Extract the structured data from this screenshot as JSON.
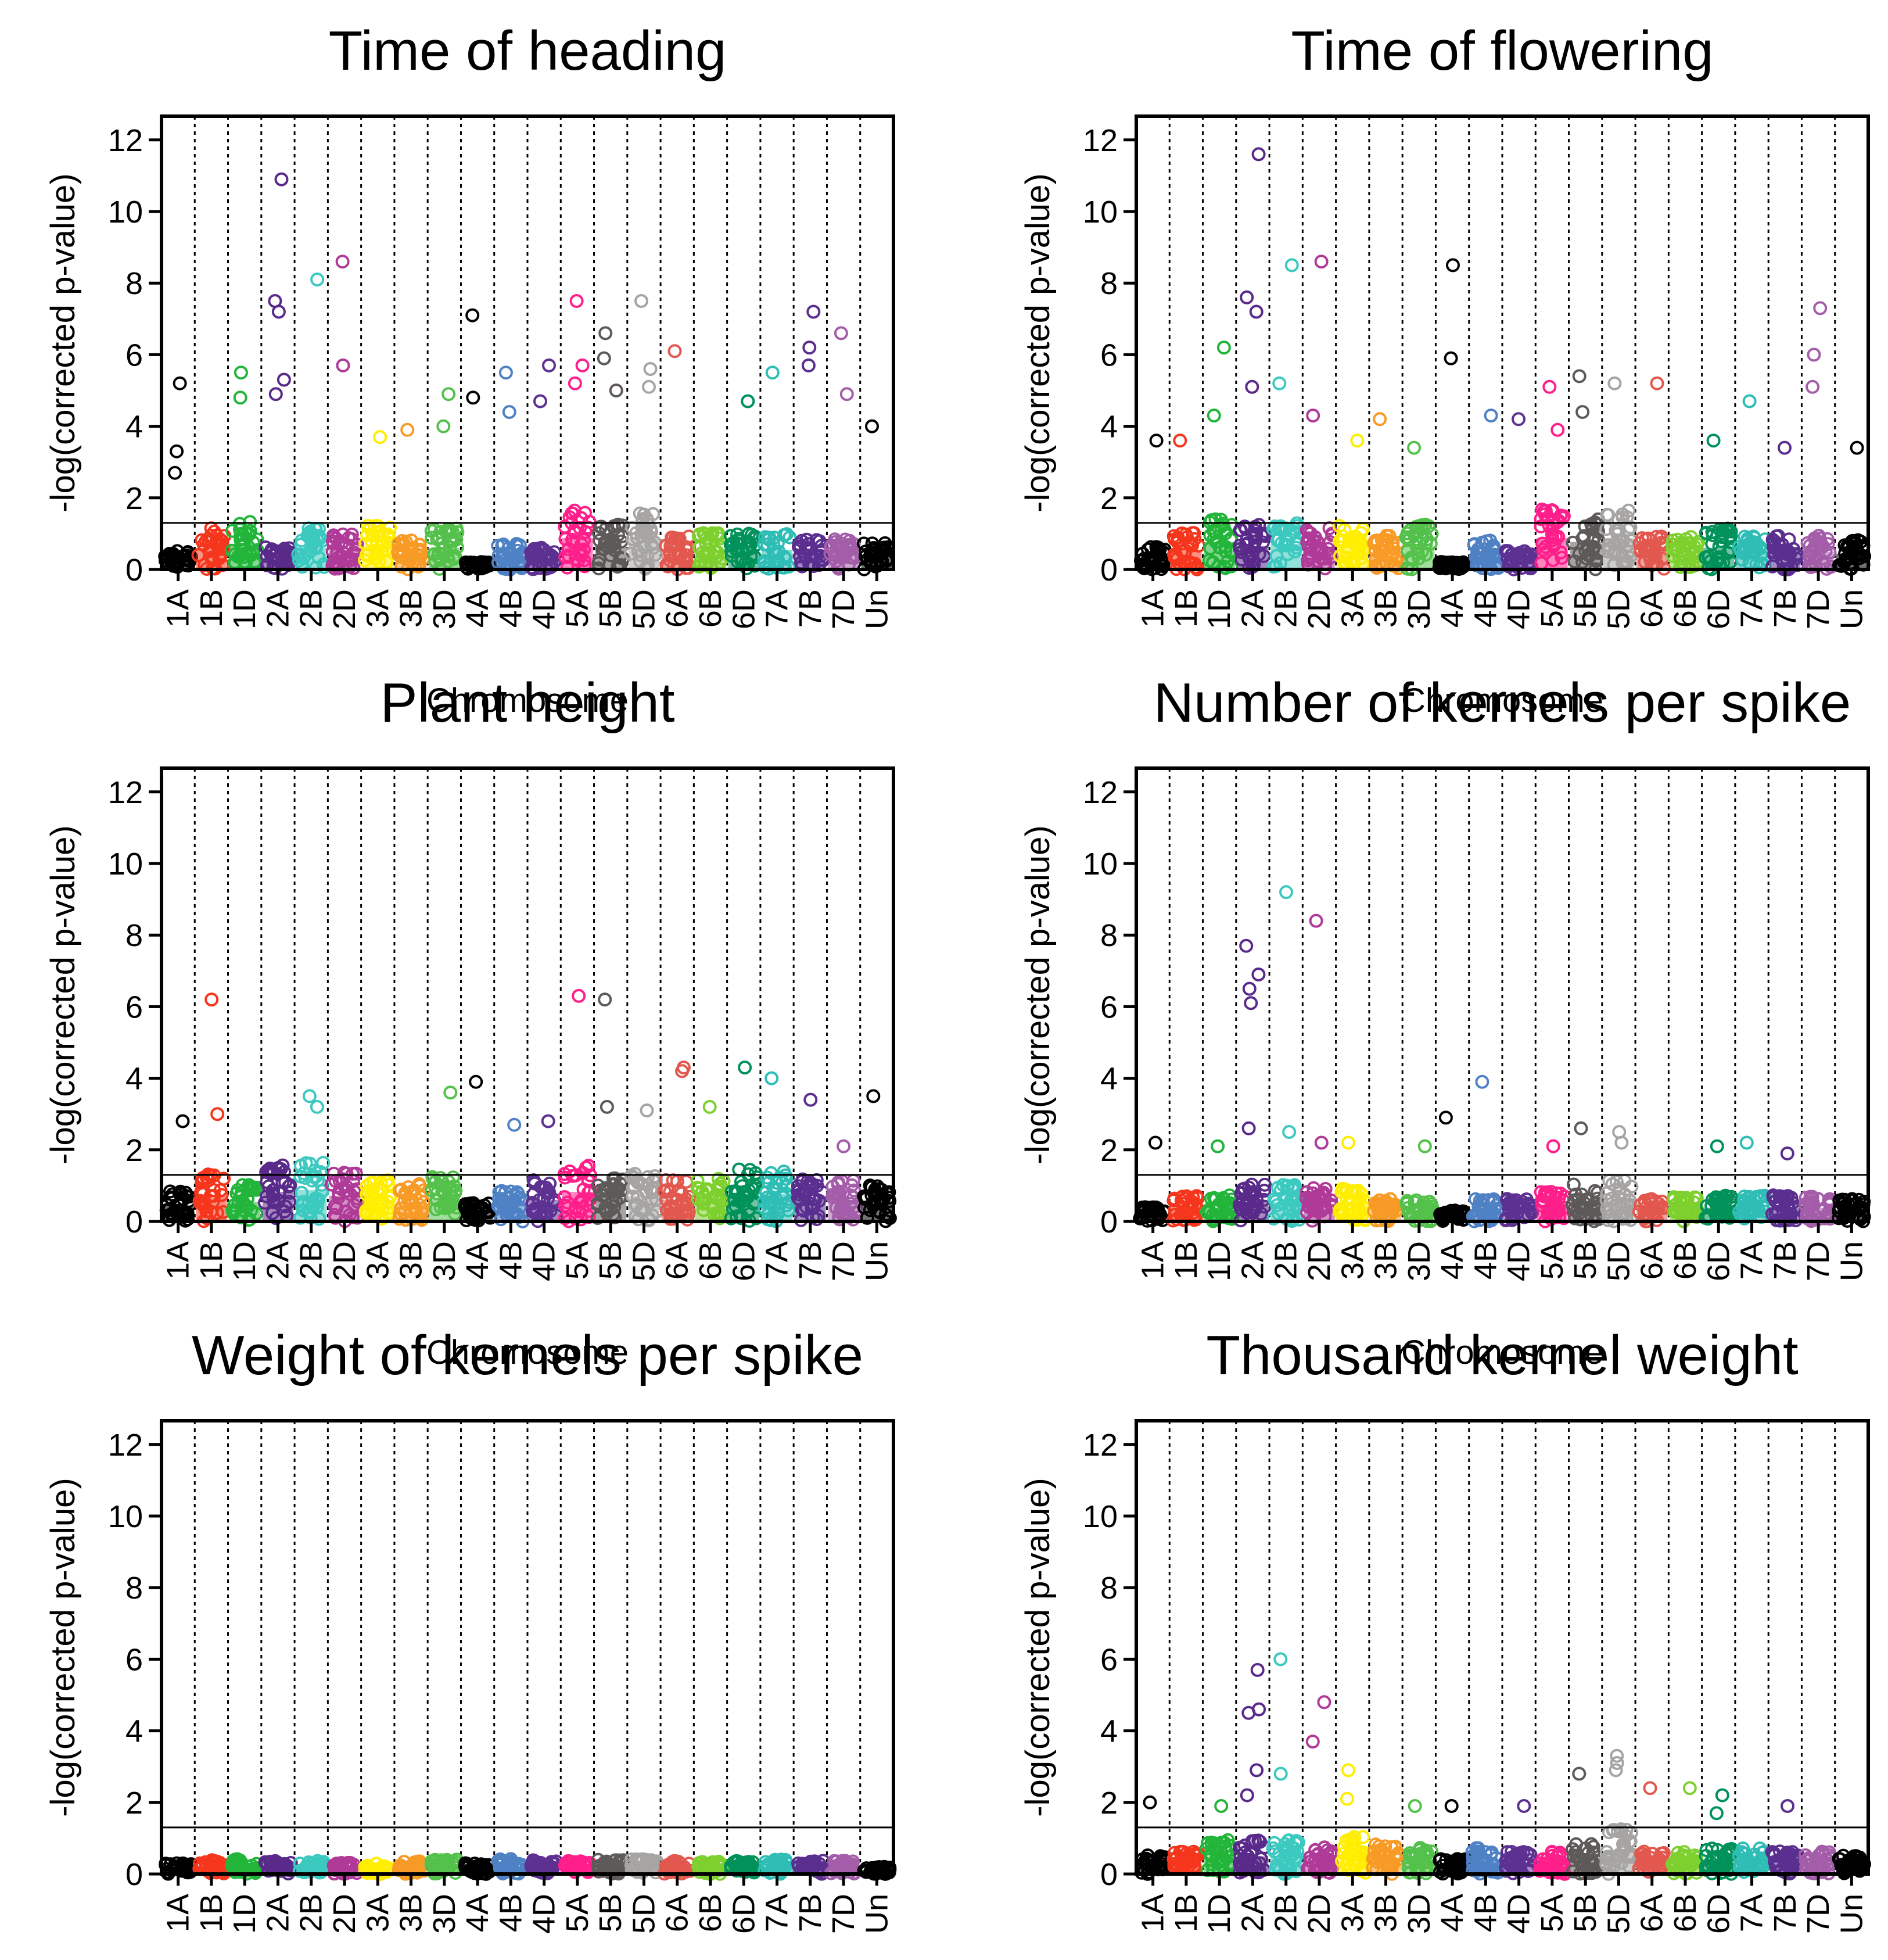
{
  "chart_data": [
    {
      "type": "scatter",
      "title": "Time of heading",
      "xlabel": "Chromosome",
      "ylabel": "-log(corrected p-value)",
      "ylim": [
        0,
        12.5
      ],
      "yticks": [
        "0",
        "2",
        "4",
        "6",
        "8",
        "10",
        "12"
      ],
      "threshold": 1.3,
      "grid": false,
      "base_levels": [
        0.5,
        1.1,
        1.3,
        0.6,
        1.1,
        1.0,
        1.2,
        0.8,
        1.1,
        0.2,
        0.7,
        0.6,
        1.6,
        1.2,
        1.6,
        0.9,
        1.0,
        1.0,
        1.0,
        0.8,
        0.8,
        0.7
      ],
      "peaks": [
        [
          0,
          5.2
        ],
        [
          0,
          3.3
        ],
        [
          0,
          2.7
        ],
        [
          2,
          5.5
        ],
        [
          2,
          4.8
        ],
        [
          3,
          10.9
        ],
        [
          3,
          7.5
        ],
        [
          3,
          7.2
        ],
        [
          3,
          5.3
        ],
        [
          3,
          4.9
        ],
        [
          4,
          8.1
        ],
        [
          5,
          8.6
        ],
        [
          5,
          5.7
        ],
        [
          6,
          3.7
        ],
        [
          7,
          3.9
        ],
        [
          8,
          4.9
        ],
        [
          8,
          4.0
        ],
        [
          9,
          7.1
        ],
        [
          9,
          4.8
        ],
        [
          10,
          5.5
        ],
        [
          10,
          4.4
        ],
        [
          11,
          5.7
        ],
        [
          11,
          4.7
        ],
        [
          12,
          7.5
        ],
        [
          12,
          5.7
        ],
        [
          12,
          5.2
        ],
        [
          13,
          6.6
        ],
        [
          13,
          5.9
        ],
        [
          13,
          5.0
        ],
        [
          14,
          7.5
        ],
        [
          14,
          5.6
        ],
        [
          14,
          5.1
        ],
        [
          15,
          6.1
        ],
        [
          17,
          4.7
        ],
        [
          18,
          5.5
        ],
        [
          19,
          7.2
        ],
        [
          19,
          6.2
        ],
        [
          19,
          5.7
        ],
        [
          20,
          6.6
        ],
        [
          20,
          4.9
        ],
        [
          21,
          4.0
        ]
      ]
    },
    {
      "type": "scatter",
      "title": "Time of flowering",
      "xlabel": "Chromosome",
      "ylabel": "-log(corrected p-value)",
      "ylim": [
        0,
        12.5
      ],
      "yticks": [
        "0",
        "2",
        "4",
        "6",
        "8",
        "10",
        "12"
      ],
      "threshold": 1.3,
      "grid": false,
      "base_levels": [
        0.6,
        1.0,
        1.4,
        1.2,
        1.3,
        1.1,
        1.2,
        0.9,
        1.2,
        0.2,
        0.8,
        0.5,
        1.6,
        1.4,
        1.6,
        0.9,
        0.9,
        1.1,
        0.9,
        0.9,
        0.9,
        0.8
      ],
      "peaks": [
        [
          0,
          3.6
        ],
        [
          1,
          3.6
        ],
        [
          2,
          6.2
        ],
        [
          2,
          4.3
        ],
        [
          3,
          11.6
        ],
        [
          3,
          7.6
        ],
        [
          3,
          7.2
        ],
        [
          3,
          5.1
        ],
        [
          4,
          8.5
        ],
        [
          4,
          5.2
        ],
        [
          5,
          8.6
        ],
        [
          5,
          4.3
        ],
        [
          6,
          3.6
        ],
        [
          7,
          4.2
        ],
        [
          8,
          3.4
        ],
        [
          9,
          8.5
        ],
        [
          9,
          5.9
        ],
        [
          10,
          4.3
        ],
        [
          11,
          4.2
        ],
        [
          12,
          5.1
        ],
        [
          12,
          3.9
        ],
        [
          13,
          5.4
        ],
        [
          13,
          4.4
        ],
        [
          14,
          5.2
        ],
        [
          15,
          5.2
        ],
        [
          17,
          3.6
        ],
        [
          18,
          4.7
        ],
        [
          19,
          3.4
        ],
        [
          20,
          7.3
        ],
        [
          20,
          6.0
        ],
        [
          20,
          5.1
        ],
        [
          21,
          3.4
        ]
      ]
    },
    {
      "type": "scatter",
      "title": "Plant height",
      "xlabel": "Chromosome",
      "ylabel": "-log(corrected p-value)",
      "ylim": [
        0,
        12.5
      ],
      "yticks": [
        "0",
        "2",
        "4",
        "6",
        "8",
        "10",
        "12"
      ],
      "threshold": 1.3,
      "grid": false,
      "base_levels": [
        0.8,
        1.3,
        1.0,
        1.5,
        1.6,
        1.3,
        1.1,
        1.0,
        1.2,
        0.5,
        0.9,
        1.1,
        1.5,
        1.2,
        1.3,
        1.1,
        1.2,
        1.4,
        1.4,
        1.2,
        1.1,
        1.0
      ],
      "peaks": [
        [
          0,
          2.8
        ],
        [
          1,
          6.2
        ],
        [
          1,
          3.0
        ],
        [
          4,
          3.5
        ],
        [
          4,
          3.2
        ],
        [
          8,
          3.6
        ],
        [
          9,
          3.9
        ],
        [
          10,
          2.7
        ],
        [
          11,
          2.8
        ],
        [
          12,
          6.3
        ],
        [
          13,
          6.2
        ],
        [
          13,
          3.2
        ],
        [
          14,
          3.1
        ],
        [
          15,
          4.2
        ],
        [
          15,
          4.3
        ],
        [
          16,
          3.2
        ],
        [
          17,
          4.3
        ],
        [
          18,
          4.0
        ],
        [
          19,
          3.4
        ],
        [
          20,
          2.1
        ],
        [
          21,
          3.5
        ]
      ]
    },
    {
      "type": "scatter",
      "title": "Number of kernels per spike",
      "xlabel": "Chromosome",
      "ylabel": "-log(corrected p-value)",
      "ylim": [
        0,
        12.5
      ],
      "yticks": [
        "0",
        "2",
        "4",
        "6",
        "8",
        "10",
        "12"
      ],
      "threshold": 1.3,
      "grid": false,
      "base_levels": [
        0.4,
        0.7,
        0.7,
        1.0,
        1.0,
        0.9,
        0.9,
        0.6,
        0.6,
        0.3,
        0.6,
        0.6,
        0.8,
        1.0,
        1.1,
        0.6,
        0.7,
        0.7,
        0.7,
        0.7,
        0.7,
        0.6
      ],
      "peaks": [
        [
          0,
          2.2
        ],
        [
          2,
          2.1
        ],
        [
          3,
          7.7
        ],
        [
          3,
          6.9
        ],
        [
          3,
          6.5
        ],
        [
          3,
          6.1
        ],
        [
          3,
          2.6
        ],
        [
          4,
          9.2
        ],
        [
          4,
          2.5
        ],
        [
          5,
          8.4
        ],
        [
          5,
          2.2
        ],
        [
          6,
          2.2
        ],
        [
          8,
          2.1
        ],
        [
          9,
          2.9
        ],
        [
          10,
          3.9
        ],
        [
          12,
          2.1
        ],
        [
          13,
          2.6
        ],
        [
          14,
          2.5
        ],
        [
          14,
          2.2
        ],
        [
          17,
          2.1
        ],
        [
          18,
          2.2
        ],
        [
          19,
          1.9
        ]
      ]
    },
    {
      "type": "scatter",
      "title": "Weight of kernels per spike",
      "xlabel": "Chromosome",
      "ylabel": "-log(corrected p-value)",
      "ylim": [
        0,
        12.5
      ],
      "yticks": [
        "0",
        "2",
        "4",
        "6",
        "8",
        "10",
        "12"
      ],
      "threshold": 1.3,
      "grid": false,
      "base_levels": [
        0.3,
        0.4,
        0.4,
        0.35,
        0.35,
        0.3,
        0.3,
        0.35,
        0.4,
        0.3,
        0.4,
        0.4,
        0.35,
        0.4,
        0.4,
        0.35,
        0.35,
        0.35,
        0.4,
        0.35,
        0.35,
        0.2
      ],
      "peaks": []
    },
    {
      "type": "scatter",
      "title": "Thousand kernel weight",
      "xlabel": "Chromosome",
      "ylabel": "-log(corrected p-value)",
      "ylim": [
        0,
        12.5
      ],
      "yticks": [
        "0",
        "2",
        "4",
        "6",
        "8",
        "10",
        "12"
      ],
      "threshold": 1.3,
      "grid": false,
      "base_levels": [
        0.5,
        0.6,
        0.9,
        0.9,
        0.9,
        0.8,
        1.0,
        0.8,
        0.7,
        0.4,
        0.7,
        0.6,
        0.6,
        0.8,
        1.2,
        0.6,
        0.6,
        0.7,
        0.7,
        0.6,
        0.6,
        0.5
      ],
      "peaks": [
        [
          0,
          2.0
        ],
        [
          2,
          1.9
        ],
        [
          3,
          5.7
        ],
        [
          3,
          4.6
        ],
        [
          3,
          4.5
        ],
        [
          3,
          2.9
        ],
        [
          3,
          2.2
        ],
        [
          4,
          6.0
        ],
        [
          4,
          2.8
        ],
        [
          5,
          4.8
        ],
        [
          5,
          3.7
        ],
        [
          6,
          2.9
        ],
        [
          6,
          2.1
        ],
        [
          8,
          1.9
        ],
        [
          9,
          1.9
        ],
        [
          11,
          1.9
        ],
        [
          13,
          2.8
        ],
        [
          14,
          3.3
        ],
        [
          14,
          3.1
        ],
        [
          14,
          2.9
        ],
        [
          15,
          2.4
        ],
        [
          16,
          2.4
        ],
        [
          17,
          2.2
        ],
        [
          17,
          1.7
        ],
        [
          19,
          1.9
        ]
      ]
    }
  ],
  "chromosomes": [
    "1A",
    "1B",
    "1D",
    "2A",
    "2B",
    "2D",
    "3A",
    "3B",
    "3D",
    "4A",
    "4B",
    "4D",
    "5A",
    "5B",
    "5D",
    "6A",
    "6B",
    "6D",
    "7A",
    "7B",
    "7D",
    "Un"
  ],
  "colors": [
    "#000000",
    "#f5361d",
    "#22b53a",
    "#592a8a",
    "#3cc9bf",
    "#b03a98",
    "#ffee00",
    "#f79a26",
    "#53c14b",
    "#000000",
    "#4f81c5",
    "#5d3191",
    "#ff1f8a",
    "#5e5a59",
    "#a6a5a4",
    "#e2584f",
    "#7ed02f",
    "#00925a",
    "#2fbeb6",
    "#5a2f8f",
    "#a45ea9",
    "#000000"
  ]
}
